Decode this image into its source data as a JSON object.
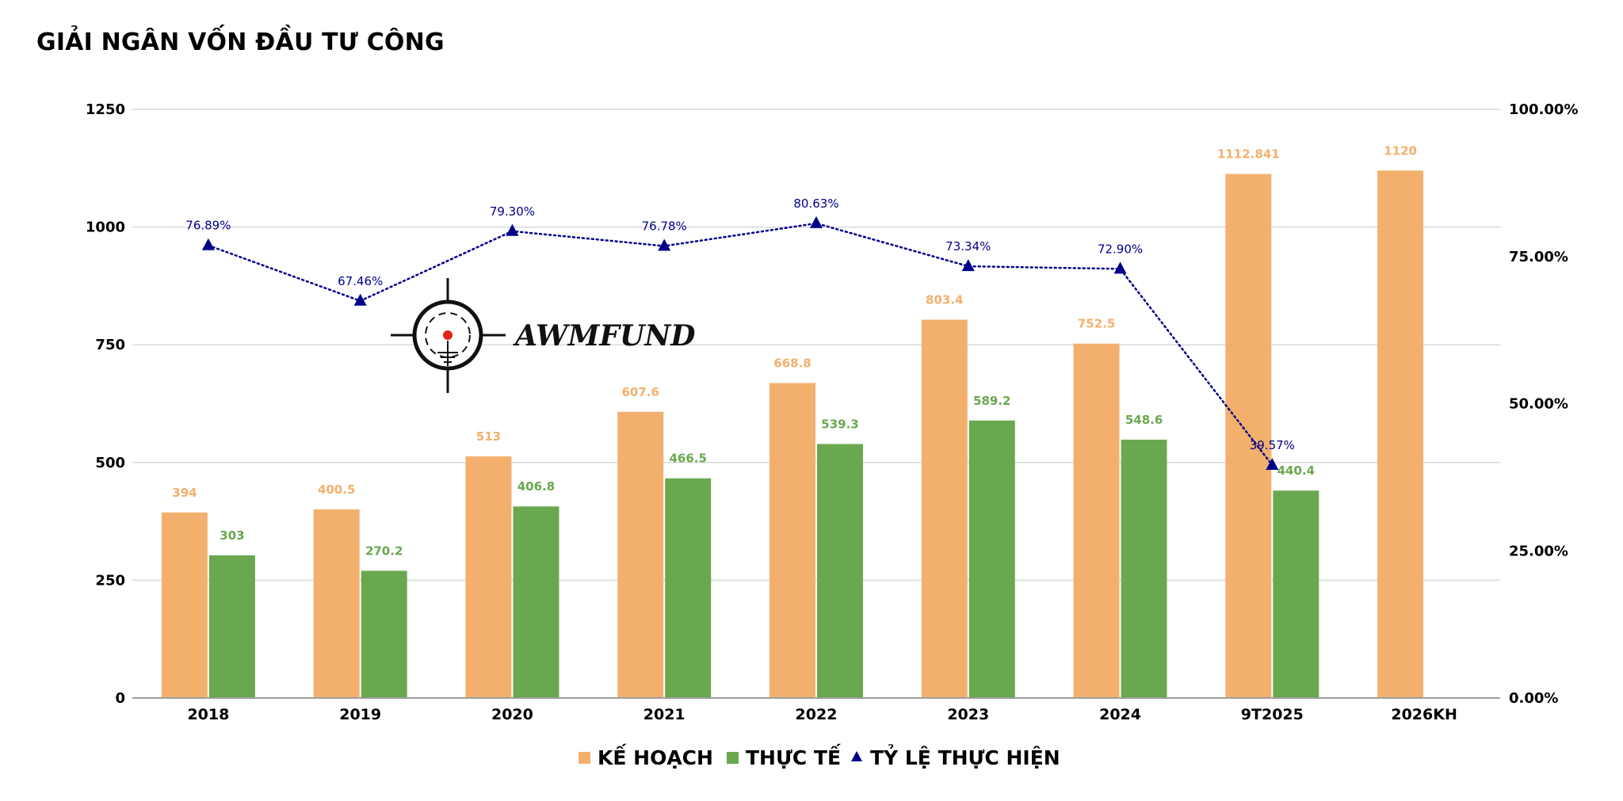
{
  "title": "GIẢI NGÂN VỐN ĐẦU TƯ CÔNG",
  "logo": {
    "text": "AWMFUND",
    "icon": "crosshair-icon"
  },
  "colors": {
    "plan": "#f3b06c",
    "actual": "#6aa84f",
    "ratio": "#00008b",
    "grid": "#d9d9d9"
  },
  "chart_data": {
    "type": "bar",
    "title": "GIẢI NGÂN VỐN ĐẦU TƯ CÔNG",
    "categories": [
      "2018",
      "2019",
      "2020",
      "2021",
      "2022",
      "2023",
      "2024",
      "9T2025",
      "2026KH"
    ],
    "series": [
      {
        "name": "KẾ HOẠCH",
        "type": "bar",
        "axis": "left",
        "color": "#f3b06c",
        "values": [
          394,
          400.5,
          513,
          607.6,
          668.8,
          803.4,
          752.5,
          1112.841,
          1120
        ],
        "labels": [
          "394",
          "400.5",
          "513",
          "607.6",
          "668.8",
          "803.4",
          "752.5",
          "1112.841",
          "1120"
        ]
      },
      {
        "name": "THỰC TẾ",
        "type": "bar",
        "axis": "left",
        "color": "#6aa84f",
        "values": [
          303,
          270.2,
          406.8,
          466.5,
          539.3,
          589.2,
          548.6,
          440.4,
          null
        ],
        "labels": [
          "303",
          "270.2",
          "406.8",
          "466.5",
          "539.3",
          "589.2",
          "548.6",
          "440.4",
          null
        ]
      },
      {
        "name": "TỶ LỆ THỰC HIỆN",
        "type": "line",
        "axis": "right",
        "color": "#00008b",
        "values": [
          76.89,
          67.46,
          79.3,
          76.78,
          80.63,
          73.34,
          72.9,
          39.57,
          null
        ],
        "labels": [
          "76.89%",
          "67.46%",
          "79.30%",
          "76.78%",
          "80.63%",
          "73.34%",
          "72.90%",
          "39.57%",
          null
        ]
      }
    ],
    "y_left": {
      "min": 0,
      "max": 1250,
      "ticks": [
        "0",
        "250",
        "500",
        "750",
        "1000",
        "1250"
      ]
    },
    "y_right": {
      "min": 0,
      "max": 100,
      "ticks": [
        "0.00%",
        "25.00%",
        "50.00%",
        "75.00%",
        "100.00%"
      ]
    },
    "grid": true,
    "legend_position": "bottom"
  }
}
